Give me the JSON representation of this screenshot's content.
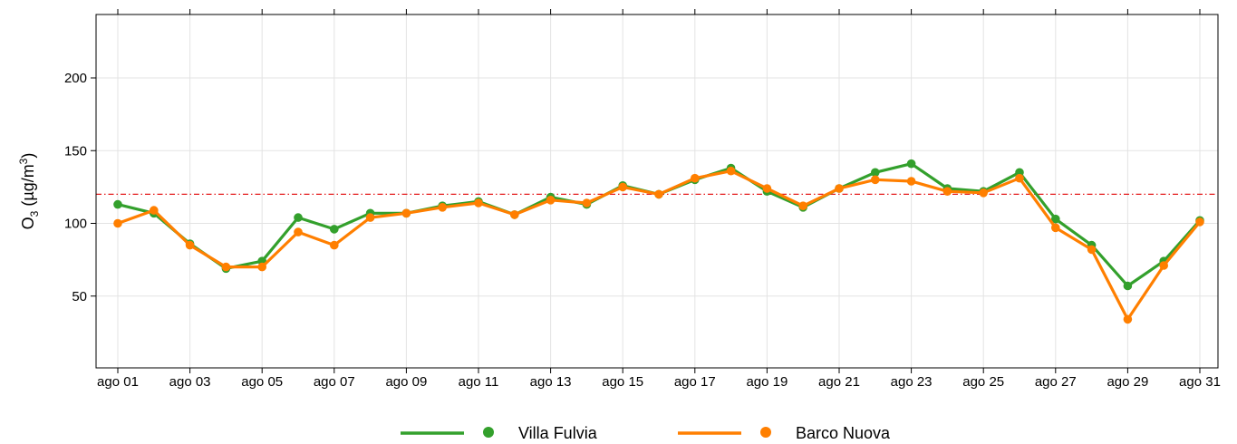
{
  "chart_data": {
    "type": "line",
    "ylabel": {
      "base": "O",
      "sub": "3",
      "unit_prefix": " (µg/m",
      "sup": "3",
      "unit_suffix": ")"
    },
    "ylim": [
      0,
      240
    ],
    "yticks": [
      50,
      100,
      150,
      200
    ],
    "x": [
      1,
      2,
      3,
      4,
      5,
      6,
      7,
      8,
      9,
      10,
      11,
      12,
      13,
      14,
      15,
      16,
      17,
      18,
      19,
      20,
      21,
      22,
      23,
      24,
      25,
      26,
      27,
      28,
      29,
      30,
      31
    ],
    "xticks": [
      {
        "day": 1,
        "label": "ago 01"
      },
      {
        "day": 3,
        "label": "ago 03"
      },
      {
        "day": 5,
        "label": "ago 05"
      },
      {
        "day": 7,
        "label": "ago 07"
      },
      {
        "day": 9,
        "label": "ago 09"
      },
      {
        "day": 11,
        "label": "ago 11"
      },
      {
        "day": 13,
        "label": "ago 13"
      },
      {
        "day": 15,
        "label": "ago 15"
      },
      {
        "day": 17,
        "label": "ago 17"
      },
      {
        "day": 19,
        "label": "ago 19"
      },
      {
        "day": 21,
        "label": "ago 21"
      },
      {
        "day": 23,
        "label": "ago 23"
      },
      {
        "day": 25,
        "label": "ago 25"
      },
      {
        "day": 27,
        "label": "ago 27"
      },
      {
        "day": 29,
        "label": "ago 29"
      },
      {
        "day": 31,
        "label": "ago 31"
      }
    ],
    "threshold": {
      "value": 120,
      "color": "#e41a1c"
    },
    "grid": true,
    "legend_position": "bottom",
    "series": [
      {
        "name": "Villa Fulvia",
        "color": "#33a02c",
        "values": [
          113,
          107,
          86,
          69,
          74,
          104,
          96,
          107,
          107,
          112,
          115,
          106,
          118,
          113,
          126,
          120,
          130,
          138,
          122,
          111,
          124,
          135,
          141,
          124,
          122,
          135,
          103,
          85,
          57,
          74,
          102
        ]
      },
      {
        "name": "Barco Nuova",
        "color": "#ff7f00",
        "values": [
          100,
          109,
          85,
          70,
          70,
          94,
          85,
          104,
          107,
          111,
          114,
          106,
          116,
          114,
          125,
          120,
          131,
          136,
          124,
          112,
          124,
          130,
          129,
          122,
          121,
          131,
          97,
          82,
          34,
          71,
          101
        ]
      }
    ]
  }
}
